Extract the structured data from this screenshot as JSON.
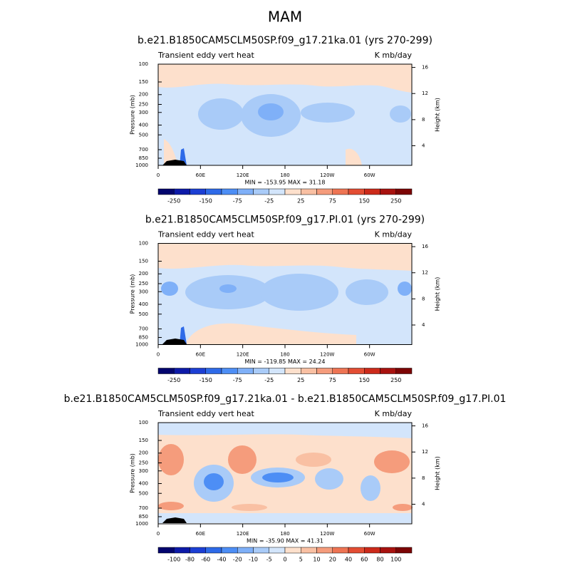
{
  "title": "MAM",
  "panels": [
    {
      "title": "b.e21.B1850CAM5CLM50SP.f09_g17.21ka.01 (yrs 270-299)",
      "left_label": "Transient eddy vert heat",
      "right_label": "K mb/day",
      "ylabel": "Pressure (mb)",
      "y2label": "Height (km)",
      "log_y": true,
      "ylim": [
        1000,
        100
      ],
      "yticks": [
        100,
        150,
        200,
        250,
        300,
        400,
        500,
        700,
        850,
        1000
      ],
      "y2lim": [
        1,
        16.5
      ],
      "y2ticks": [
        4,
        8,
        12,
        16
      ],
      "xlim": [
        0,
        360
      ],
      "xticks": [
        0,
        {
          "value": 60,
          "label": "60E"
        },
        {
          "value": 120,
          "label": "120E"
        },
        180,
        {
          "value": 240,
          "label": "120W"
        },
        {
          "value": 300,
          "label": "60W"
        }
      ],
      "stats": "MIN = -153.95  MAX = 31.18",
      "colorbar": {
        "colors": [
          "#03056e",
          "#0d1aa8",
          "#1c3fd4",
          "#2e6ae8",
          "#4d8ef5",
          "#7fb0f8",
          "#a9cbf8",
          "#d3e5fb",
          "#fde0cc",
          "#f9c0a3",
          "#f59c7c",
          "#ee7453",
          "#e34d33",
          "#cc2a1a",
          "#a8120f",
          "#7c0505"
        ],
        "ticks": [
          -250,
          -150,
          -75,
          -25,
          25,
          75,
          150,
          250
        ]
      }
    },
    {
      "title": "b.e21.B1850CAM5CLM50SP.f09_g17.PI.01 (yrs 270-299)",
      "left_label": "Transient eddy vert heat",
      "right_label": "K mb/day",
      "ylabel": "Pressure (mb)",
      "y2label": "Height (km)",
      "log_y": true,
      "ylim": [
        1000,
        100
      ],
      "yticks": [
        100,
        150,
        200,
        250,
        300,
        400,
        500,
        700,
        850,
        1000
      ],
      "y2lim": [
        1,
        16.5
      ],
      "y2ticks": [
        4,
        8,
        12,
        16
      ],
      "xlim": [
        0,
        360
      ],
      "xticks": [
        0,
        {
          "value": 60,
          "label": "60E"
        },
        {
          "value": 120,
          "label": "120E"
        },
        180,
        {
          "value": 240,
          "label": "120W"
        },
        {
          "value": 300,
          "label": "60W"
        }
      ],
      "stats": "MIN = -119.85  MAX = 24.24",
      "colorbar": {
        "colors": [
          "#03056e",
          "#0d1aa8",
          "#1c3fd4",
          "#2e6ae8",
          "#4d8ef5",
          "#7fb0f8",
          "#a9cbf8",
          "#d3e5fb",
          "#fde0cc",
          "#f9c0a3",
          "#f59c7c",
          "#ee7453",
          "#e34d33",
          "#cc2a1a",
          "#a8120f",
          "#7c0505"
        ],
        "ticks": [
          -250,
          -150,
          -75,
          -25,
          25,
          75,
          150,
          250
        ]
      }
    },
    {
      "title": "b.e21.B1850CAM5CLM50SP.f09_g17.21ka.01 - b.e21.B1850CAM5CLM50SP.f09_g17.PI.01",
      "left_label": "Transient eddy vert heat",
      "right_label": "K mb/day",
      "ylabel": "Pressure (mb)",
      "y2label": "Height (km)",
      "log_y": true,
      "ylim": [
        1000,
        100
      ],
      "yticks": [
        100,
        150,
        200,
        250,
        300,
        400,
        500,
        700,
        850,
        1000
      ],
      "y2lim": [
        1,
        16.5
      ],
      "y2ticks": [
        4,
        8,
        12,
        16
      ],
      "xlim": [
        0,
        360
      ],
      "xticks": [
        0,
        {
          "value": 60,
          "label": "60E"
        },
        {
          "value": 120,
          "label": "120E"
        },
        180,
        {
          "value": 240,
          "label": "120W"
        },
        {
          "value": 300,
          "label": "60W"
        }
      ],
      "stats": "MIN = -35.90  MAX = 41.31",
      "colorbar": {
        "colors": [
          "#03056e",
          "#0d1aa8",
          "#1c3fd4",
          "#2e6ae8",
          "#4d8ef5",
          "#7fb0f8",
          "#a9cbf8",
          "#d3e5fb",
          "#fde0cc",
          "#f9c0a3",
          "#f59c7c",
          "#ee7453",
          "#e34d33",
          "#cc2a1a",
          "#a8120f",
          "#7c0505"
        ],
        "ticks": [
          -100,
          -80,
          -60,
          -40,
          -20,
          -10,
          -5,
          0,
          5,
          10,
          20,
          40,
          60,
          80,
          100
        ]
      }
    }
  ]
}
